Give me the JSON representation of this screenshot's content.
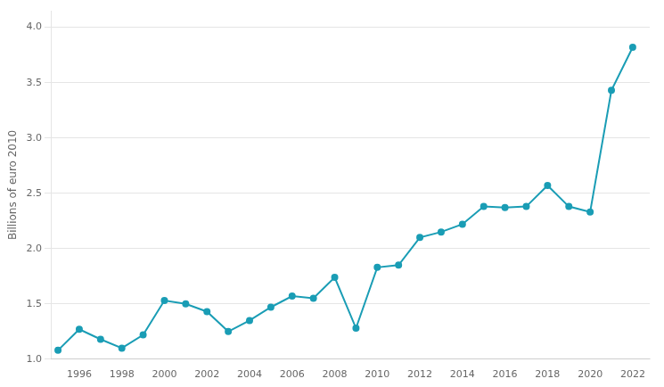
{
  "chart_data": {
    "type": "line",
    "x": [
      1995,
      1996,
      1997,
      1998,
      1999,
      2000,
      2001,
      2002,
      2003,
      2004,
      2005,
      2006,
      2007,
      2008,
      2009,
      2010,
      2011,
      2012,
      2013,
      2014,
      2015,
      2016,
      2017,
      2018,
      2019,
      2020,
      2021,
      2022
    ],
    "values": [
      1.08,
      1.27,
      1.18,
      1.1,
      1.22,
      1.53,
      1.5,
      1.43,
      1.25,
      1.35,
      1.47,
      1.57,
      1.55,
      1.74,
      1.28,
      1.83,
      1.85,
      2.1,
      2.15,
      2.22,
      2.38,
      2.37,
      2.38,
      2.57,
      2.38,
      2.33,
      3.43,
      3.82
    ],
    "color": "#1a9db5",
    "marker": "circle",
    "ylabel": "Billions of euro 2010",
    "xlim": [
      1994.7,
      2022.8
    ],
    "xticks": [
      1996,
      1998,
      2000,
      2002,
      2004,
      2006,
      2008,
      2010,
      2012,
      2014,
      2016,
      2018,
      2020,
      2022
    ],
    "ylim": [
      1.0,
      4.15
    ],
    "yticks": [
      {
        "value": 1.0,
        "label": "1.0"
      },
      1.5,
      {
        "value": 2.0,
        "label": "2.0"
      },
      2.5,
      {
        "value": 3.0,
        "label": "3.0"
      },
      3.5,
      {
        "value": 4.0,
        "label": "4.0"
      }
    ],
    "grid": true
  }
}
